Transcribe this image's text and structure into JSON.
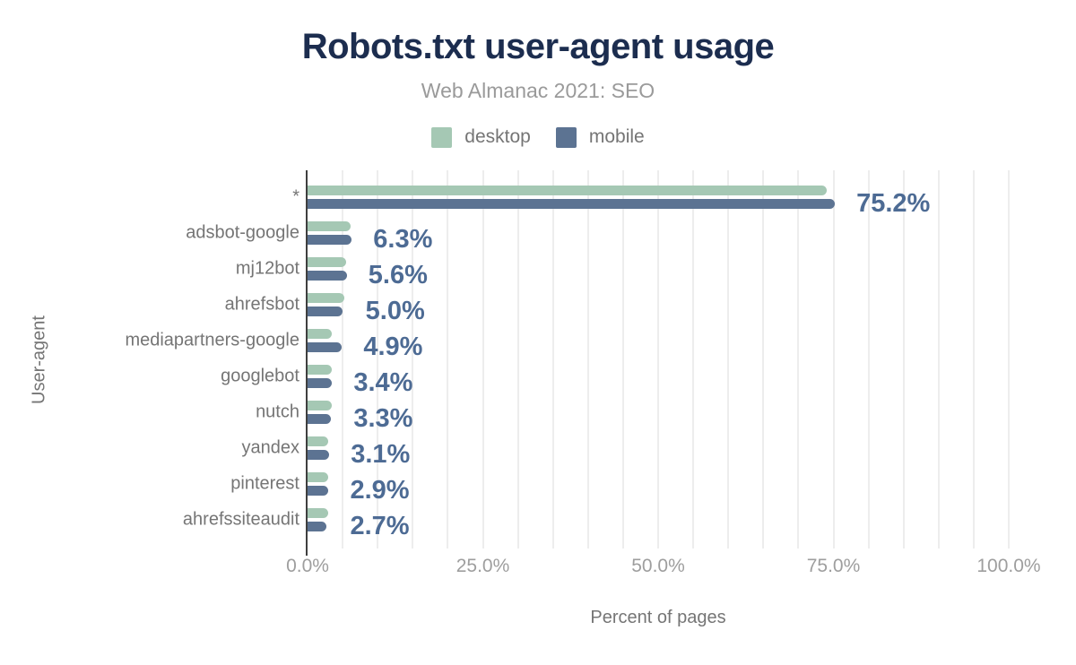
{
  "colors": {
    "desktop": "#a5c8b4",
    "mobile": "#5c7392",
    "value_label": "#4d6b94",
    "title": "#1c2d4f",
    "subtitle": "#9a9a9a",
    "axis_text": "#757575",
    "tick_text": "#9e9e9e",
    "gridline": "#ededed",
    "axis_line": "#3f3f3f",
    "background": "#ffffff"
  },
  "chart_data": {
    "type": "bar",
    "orientation": "horizontal",
    "title": "Robots.txt user-agent usage",
    "subtitle": "Web Almanac 2021: SEO",
    "xlabel": "Percent of pages",
    "ylabel": "User-agent",
    "legend_position": "top",
    "grid": true,
    "grid_step_pct": 5,
    "xlim": [
      0,
      100
    ],
    "x_ticks": [
      "0.0%",
      "25.0%",
      "50.0%",
      "75.0%",
      "100.0%"
    ],
    "x_tick_values": [
      0,
      25,
      50,
      75,
      100
    ],
    "categories": [
      "*",
      "adsbot-google",
      "mj12bot",
      "ahrefsbot",
      "mediapartners-google",
      "googlebot",
      "nutch",
      "yandex",
      "pinterest",
      "ahrefssiteaudit"
    ],
    "series": [
      {
        "name": "desktop",
        "values": [
          74.0,
          6.1,
          5.5,
          5.2,
          3.4,
          3.5,
          3.5,
          3.0,
          3.0,
          3.0
        ]
      },
      {
        "name": "mobile",
        "values": [
          75.2,
          6.3,
          5.6,
          5.0,
          4.9,
          3.4,
          3.3,
          3.1,
          2.9,
          2.7
        ]
      }
    ],
    "value_labels": [
      "75.2%",
      "6.3%",
      "5.6%",
      "5.0%",
      "4.9%",
      "3.4%",
      "3.3%",
      "3.1%",
      "2.9%",
      "2.7%"
    ],
    "value_labels_series": "mobile"
  }
}
